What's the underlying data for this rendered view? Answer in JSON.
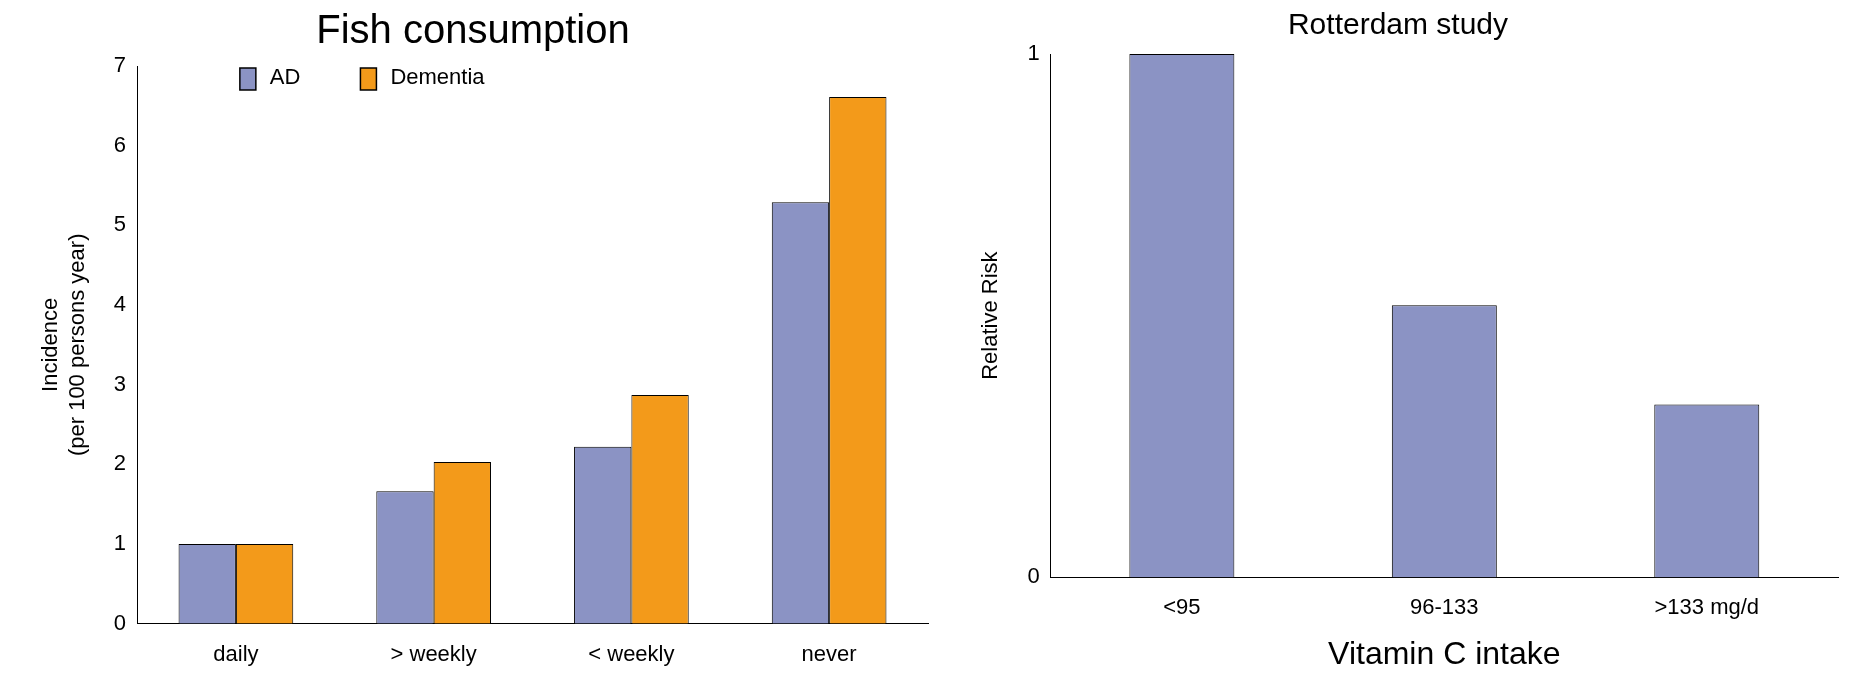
{
  "chart_data": [
    {
      "type": "bar",
      "title": "Fish consumption",
      "ylabel": "Incidence\n(per 100 persons year)",
      "categories": [
        "daily",
        "> weekly",
        "< weekly",
        "never"
      ],
      "series": [
        {
          "name": "AD",
          "color": "#8b93c4",
          "values": [
            1,
            1.66,
            2.22,
            5.29
          ]
        },
        {
          "name": "Dementia",
          "color": "#f39a1a",
          "values": [
            1,
            2.03,
            2.87,
            6.61
          ]
        }
      ],
      "ylim": [
        0,
        7
      ],
      "yticks": [
        0,
        1,
        2,
        3,
        4,
        5,
        6,
        7
      ],
      "grid": false,
      "legend": "top left"
    },
    {
      "type": "bar",
      "title": "Rotterdam study",
      "xlabel": "Vitamin C intake",
      "ylabel": "Relative Risk",
      "categories": [
        "<95",
        "96-133",
        ">133 mg/d"
      ],
      "values": [
        1,
        0.52,
        0.33
      ],
      "color": "#8b93c4",
      "ylim": [
        0,
        1
      ],
      "yticks": [
        0,
        1
      ],
      "grid": false
    }
  ]
}
